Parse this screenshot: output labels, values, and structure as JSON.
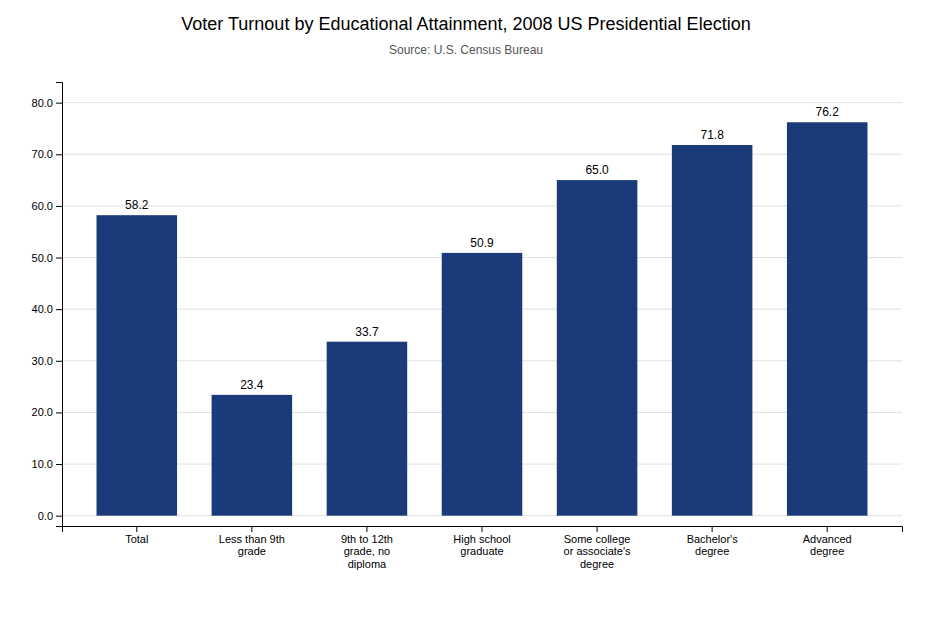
{
  "chart_data": {
    "type": "bar",
    "title": "Voter Turnout by Educational Attainment, 2008 US Presidential Election",
    "subtitle": "Source: U.S. Census Bureau",
    "categories": [
      "Total",
      "Less than 9th\ngrade",
      "9th to 12th\ngrade, no\ndiploma",
      "High school\ngraduate",
      "Some college\nor associate's\ndegree",
      "Bachelor's\ndegree",
      "Advanced\ndegree"
    ],
    "values": [
      58.2,
      23.4,
      33.7,
      50.9,
      65.0,
      71.8,
      76.2
    ],
    "value_labels": [
      "58.2",
      "23.4",
      "33.7",
      "50.9",
      "65.0",
      "71.8",
      "76.2"
    ],
    "data_labels": true,
    "color": "#1a3a7a",
    "ylim": [
      -2.0,
      84
    ],
    "yticks": [
      {
        "value": 0,
        "label": "0.0"
      },
      {
        "value": 10,
        "label": "10.0"
      },
      {
        "value": 20,
        "label": "20.0"
      },
      {
        "value": 30,
        "label": "30.0"
      },
      {
        "value": 40,
        "label": "40.0"
      },
      {
        "value": 50,
        "label": "50.0"
      },
      {
        "value": 60,
        "label": "60.0"
      },
      {
        "value": 70,
        "label": "70.0"
      },
      {
        "value": 80,
        "label": "80.0"
      }
    ],
    "grid": true
  }
}
